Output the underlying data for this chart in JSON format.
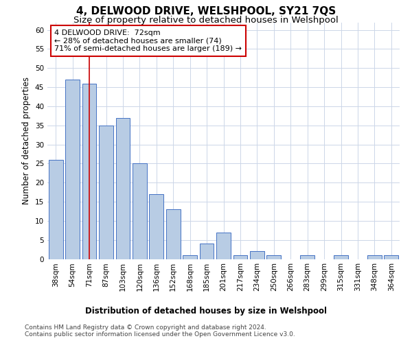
{
  "title": "4, DELWOOD DRIVE, WELSHPOOL, SY21 7QS",
  "subtitle": "Size of property relative to detached houses in Welshpool",
  "xlabel": "Distribution of detached houses by size in Welshpool",
  "ylabel": "Number of detached properties",
  "categories": [
    "38sqm",
    "54sqm",
    "71sqm",
    "87sqm",
    "103sqm",
    "120sqm",
    "136sqm",
    "152sqm",
    "168sqm",
    "185sqm",
    "201sqm",
    "217sqm",
    "234sqm",
    "250sqm",
    "266sqm",
    "283sqm",
    "299sqm",
    "315sqm",
    "331sqm",
    "348sqm",
    "364sqm"
  ],
  "values": [
    26,
    47,
    46,
    35,
    37,
    25,
    17,
    13,
    1,
    4,
    7,
    1,
    2,
    1,
    0,
    1,
    0,
    1,
    0,
    1,
    1
  ],
  "bar_color": "#b8cce4",
  "bar_edge_color": "#4472c4",
  "vline_x": 2,
  "vline_color": "#cc0000",
  "annotation_text": "4 DELWOOD DRIVE:  72sqm\n← 28% of detached houses are smaller (74)\n71% of semi-detached houses are larger (189) →",
  "annotation_box_color": "#ffffff",
  "annotation_box_edge": "#cc0000",
  "ylim": [
    0,
    62
  ],
  "yticks": [
    0,
    5,
    10,
    15,
    20,
    25,
    30,
    35,
    40,
    45,
    50,
    55,
    60
  ],
  "footer1": "Contains HM Land Registry data © Crown copyright and database right 2024.",
  "footer2": "Contains public sector information licensed under the Open Government Licence v3.0.",
  "background_color": "#ffffff",
  "grid_color": "#ccd6e8",
  "title_fontsize": 11,
  "subtitle_fontsize": 9.5,
  "axis_label_fontsize": 8.5,
  "tick_fontsize": 7.5,
  "footer_fontsize": 6.5,
  "annotation_fontsize": 8
}
